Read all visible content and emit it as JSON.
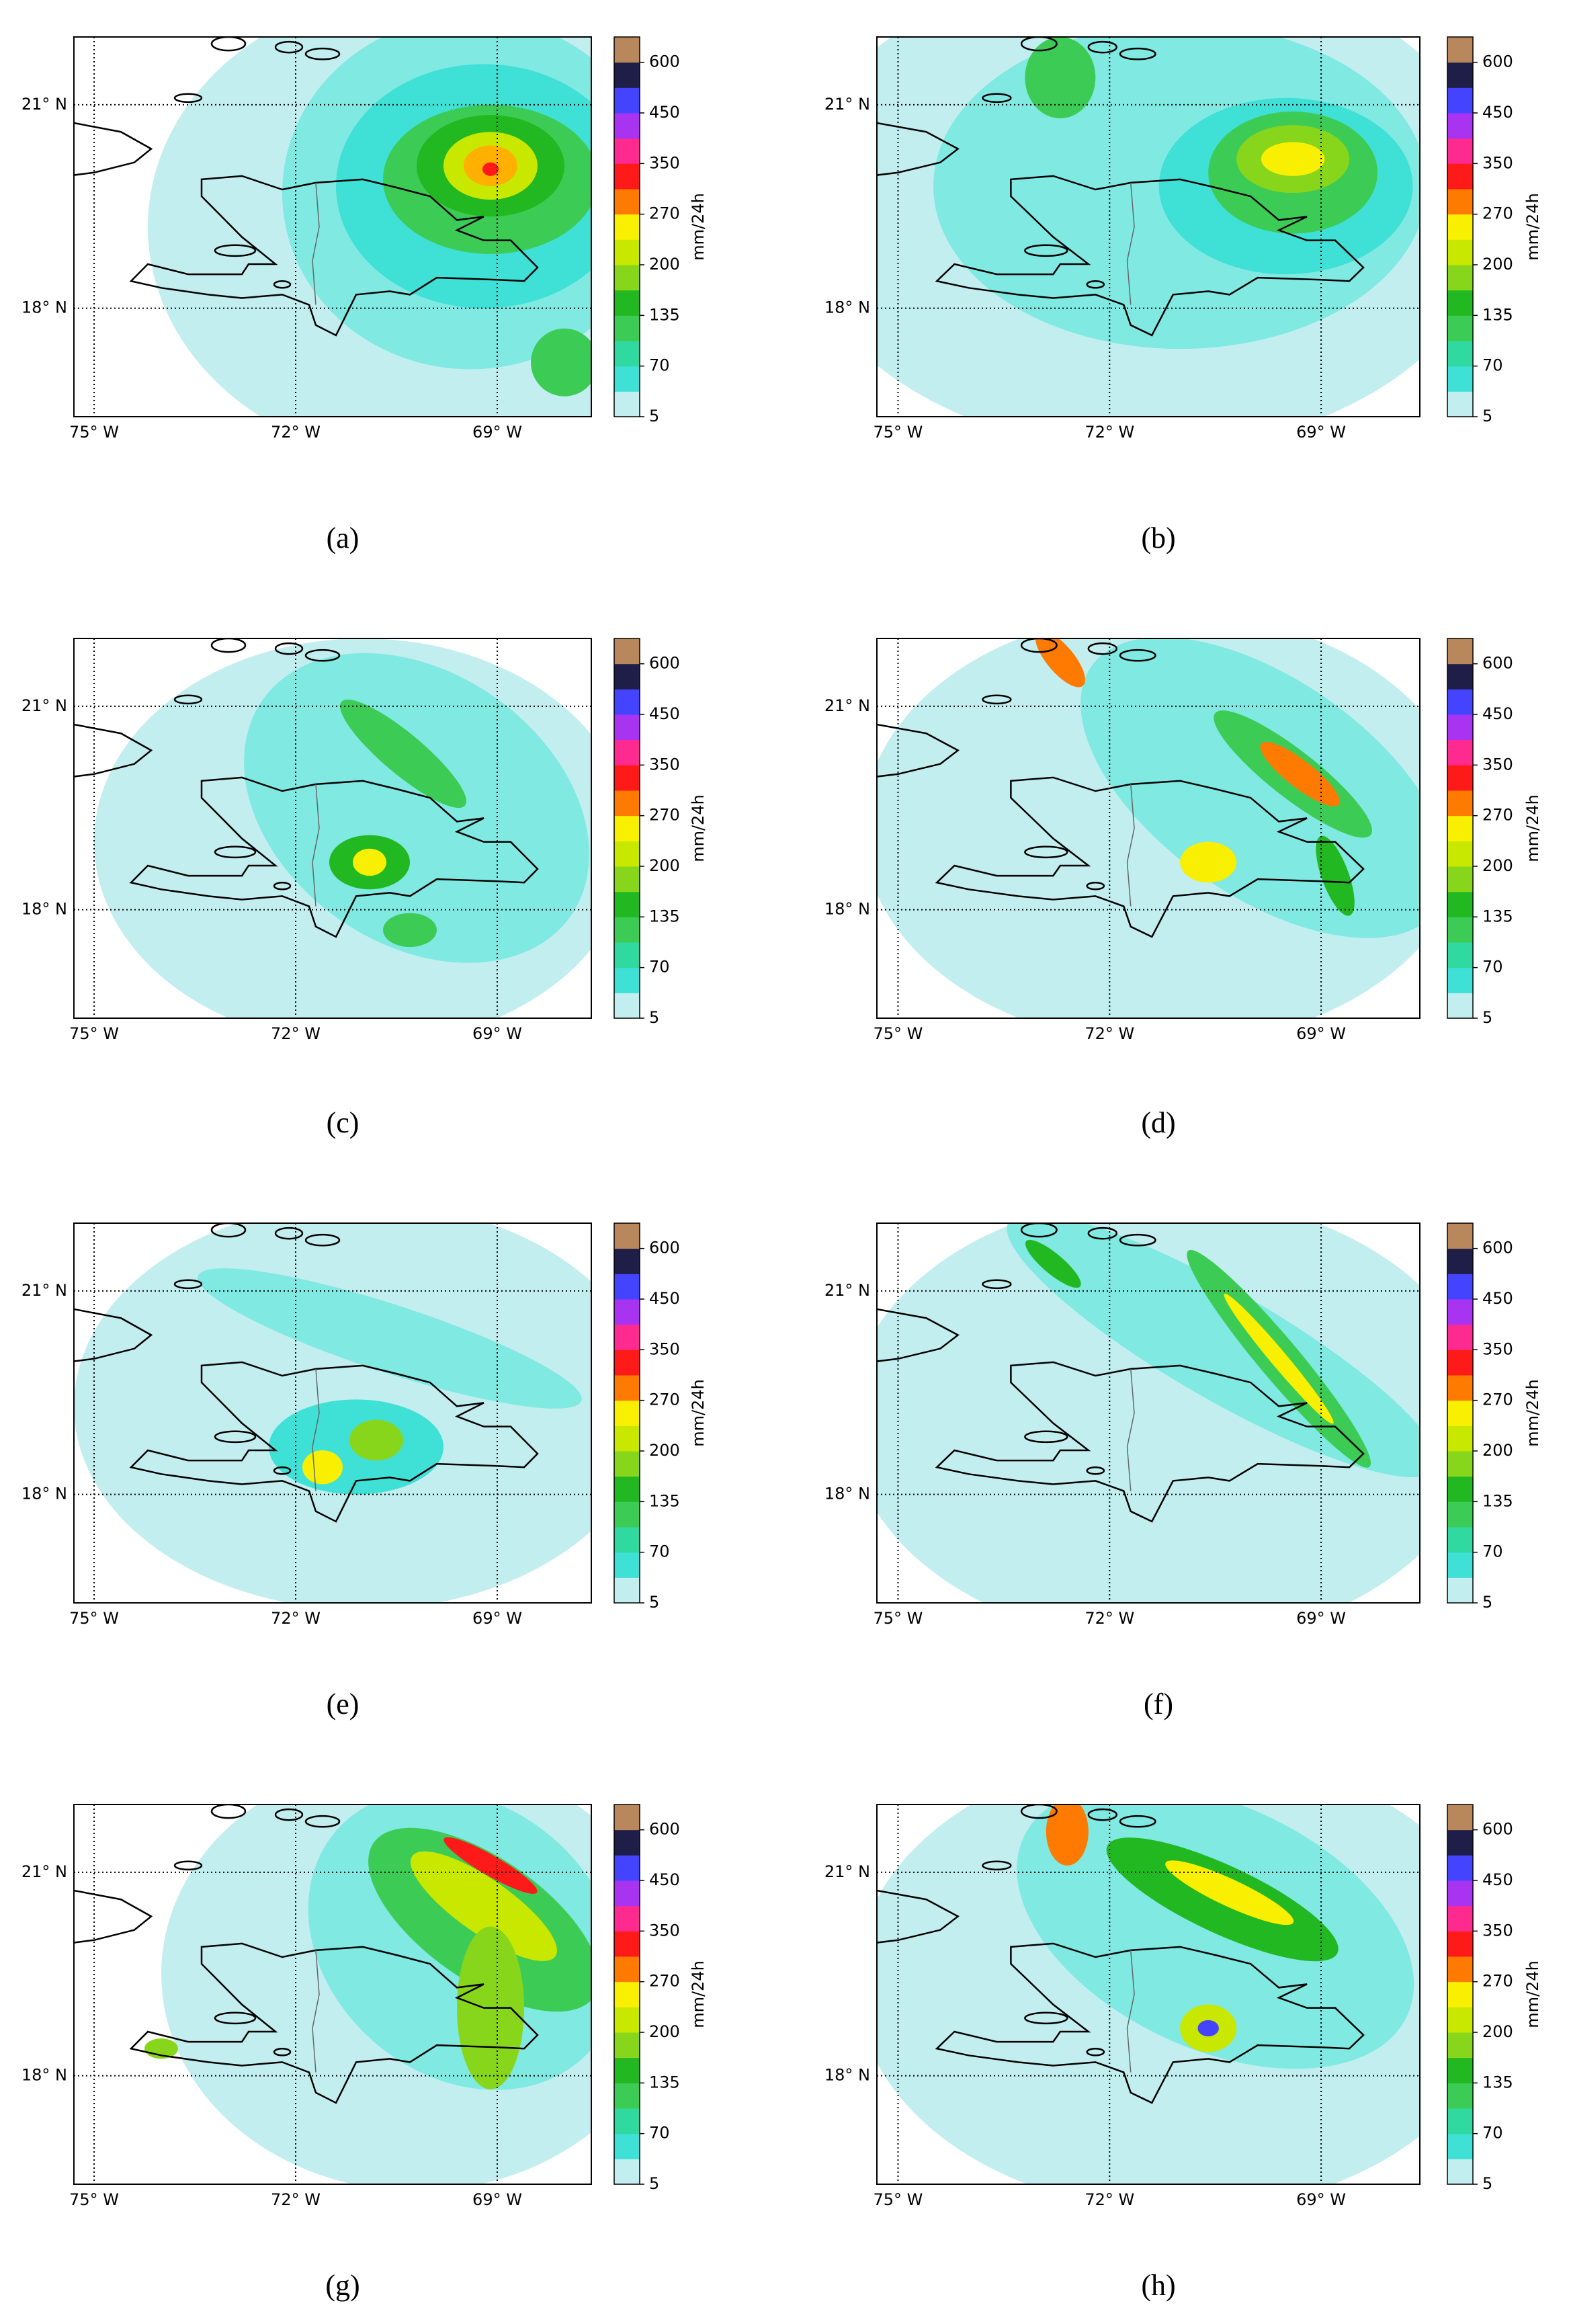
{
  "map": {
    "xlim": [
      -75.3,
      -67.6
    ],
    "ylim": [
      16.4,
      22.0
    ],
    "xticks": [
      {
        "value": -75,
        "label": "75° W"
      },
      {
        "value": -72,
        "label": "72° W"
      },
      {
        "value": -69,
        "label": "69° W"
      }
    ],
    "yticks": [
      {
        "value": 18,
        "label": "18° N"
      },
      {
        "value": 21,
        "label": "21° N"
      }
    ]
  },
  "colorbar": {
    "label": "mm/24h",
    "ticks": [
      5,
      70,
      135,
      200,
      270,
      350,
      450,
      600
    ],
    "colors": [
      "#c2eef0",
      "#7fe9e2",
      "#3fe0d6",
      "#2fd9a0",
      "#3ccc55",
      "#22b822",
      "#88d61c",
      "#c8e800",
      "#f8f000",
      "#ffb000",
      "#ff7a00",
      "#ff1a1a",
      "#ff2a90",
      "#a833f0",
      "#4444ff",
      "#1e1e48",
      "#bdbdbd",
      "#b8875c"
    ]
  },
  "panels": [
    {
      "label": "(a)"
    },
    {
      "label": "(b)"
    },
    {
      "label": "(c)"
    },
    {
      "label": "(d)"
    },
    {
      "label": "(e)"
    },
    {
      "label": "(f)"
    },
    {
      "label": "(g)"
    },
    {
      "label": "(h)"
    }
  ]
}
